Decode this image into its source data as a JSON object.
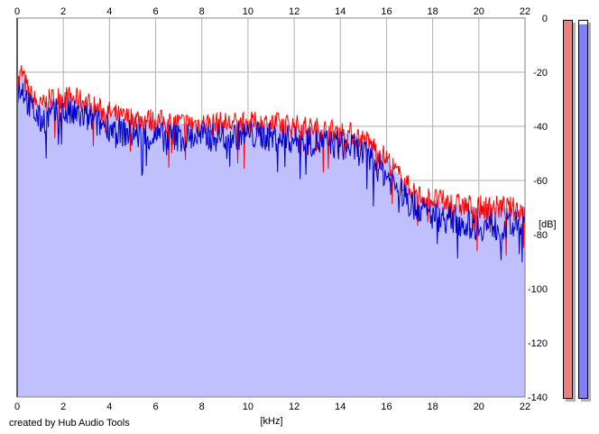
{
  "chart_data": {
    "type": "area",
    "title": "",
    "xlabel": "[kHz]",
    "ylabel": "[dB]",
    "xlim": [
      0,
      22
    ],
    "ylim": [
      -140,
      0
    ],
    "x_ticks": [
      "0",
      "2",
      "4",
      "6",
      "8",
      "10",
      "12",
      "14",
      "16",
      "18",
      "20",
      "22"
    ],
    "y_ticks": [
      "0",
      "-20",
      "-40",
      "-60",
      "-80",
      "-100",
      "-120",
      "-140"
    ],
    "grid": true,
    "series": [
      {
        "color": "#ff0000",
        "x": [
          0,
          0.2,
          0.5,
          1,
          1.5,
          2,
          2.5,
          3,
          3.5,
          4,
          4.5,
          5,
          6,
          7,
          8,
          9,
          10,
          11,
          12,
          13,
          14,
          14.5,
          15,
          15.5,
          16,
          16.5,
          17,
          17.5,
          18,
          19,
          20,
          21,
          22
        ],
        "y": [
          -25,
          -20,
          -28,
          -33,
          -30,
          -29,
          -30,
          -31,
          -34,
          -35,
          -37,
          -37,
          -38,
          -39,
          -39,
          -39,
          -39,
          -39,
          -40,
          -41,
          -42,
          -43,
          -45,
          -48,
          -52,
          -58,
          -63,
          -66,
          -67,
          -69,
          -70,
          -70,
          -71
        ]
      },
      {
        "color": "#0000c8",
        "x": [
          0,
          0.2,
          0.5,
          1,
          1.5,
          2,
          2.5,
          3,
          3.5,
          4,
          4.5,
          5,
          6,
          7,
          8,
          9,
          10,
          11,
          12,
          13,
          14,
          14.5,
          15,
          15.5,
          16,
          16.5,
          17,
          17.5,
          18,
          19,
          20,
          21,
          22
        ],
        "y": [
          -28,
          -25,
          -32,
          -38,
          -36,
          -35,
          -36,
          -37,
          -39,
          -40,
          -42,
          -43,
          -44,
          -44,
          -44,
          -44,
          -43,
          -44,
          -45,
          -46,
          -47,
          -48,
          -50,
          -54,
          -58,
          -63,
          -68,
          -71,
          -73,
          -75,
          -77,
          -77,
          -77
        ]
      }
    ],
    "area_fill": "#c0c0ff"
  },
  "footer": {
    "credit": "created by Hub Audio Tools"
  },
  "meters": [
    {
      "color": "#f08080",
      "level": 1.0
    },
    {
      "color": "#8080f0",
      "level": 0.99
    }
  ]
}
